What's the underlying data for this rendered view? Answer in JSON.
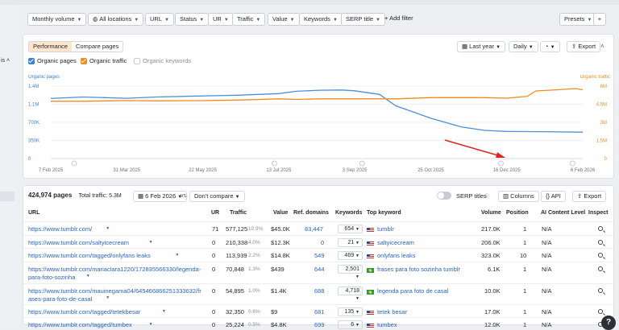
{
  "sidebar": {
    "partial_label": "is ˄"
  },
  "filters": {
    "monthly_volume": "Monthly volume",
    "all_locations": "All locations",
    "url": "URL",
    "status": "Status",
    "ur": "UR",
    "traffic": "Traffic",
    "value": "Value",
    "keywords": "Keywords",
    "serp_title": "SERP title",
    "add_filter": "Add filter",
    "presets": "Presets"
  },
  "overview": {
    "tabs": [
      "Performance",
      "Compare pages"
    ],
    "period": "Last year",
    "granularity": "Daily",
    "export": "Export",
    "checkboxes": [
      "Organic pages",
      "Organic traffic",
      "Organic keywords"
    ]
  },
  "chart_data": {
    "type": "line",
    "left_axis_label": "Organic pages",
    "right_axis_label": "Organic traffic",
    "left_ticks": [
      "0",
      "350K",
      "700K",
      "1.1M",
      "1.4M"
    ],
    "right_ticks": [
      "0",
      "1.5M",
      "3M",
      "4.5M",
      "6M"
    ],
    "x_ticks": [
      "7 Feb 2025",
      "31 Mar 2025",
      "22 May 2025",
      "13 Jul 2025",
      "3 Sep 2025",
      "25 Oct 2025",
      "16 Dec 2025",
      "6 Feb 2026"
    ],
    "ylim_left": [
      0,
      1400000
    ],
    "ylim_right": [
      0,
      6000000
    ],
    "series": [
      {
        "name": "Organic pages",
        "color": "#4a90d9",
        "x": [
          "2025-02-07",
          "2025-03-01",
          "2025-03-31",
          "2025-04-20",
          "2025-05-22",
          "2025-06-15",
          "2025-07-13",
          "2025-07-25",
          "2025-08-10",
          "2025-08-25",
          "2025-09-03",
          "2025-09-20",
          "2025-10-01",
          "2025-10-25",
          "2025-11-15",
          "2025-12-01",
          "2025-12-16",
          "2026-01-10",
          "2026-02-06"
        ],
        "values": [
          1160000,
          1190000,
          1165000,
          1190000,
          1210000,
          1225000,
          1255000,
          1300000,
          1320000,
          1325000,
          1310000,
          1240000,
          1020000,
          780000,
          610000,
          545000,
          525000,
          520000,
          510000
        ]
      },
      {
        "name": "Organic traffic",
        "color": "#f08c1e",
        "x": [
          "2025-02-07",
          "2025-03-01",
          "2025-03-31",
          "2025-04-20",
          "2025-05-22",
          "2025-06-15",
          "2025-07-13",
          "2025-07-25",
          "2025-08-10",
          "2025-09-03",
          "2025-10-01",
          "2025-10-25",
          "2025-11-15",
          "2025-12-01",
          "2025-12-16",
          "2025-12-30",
          "2026-01-05",
          "2026-01-20",
          "2026-02-01",
          "2026-02-06"
        ],
        "values": [
          4750000,
          4750000,
          4800000,
          4780000,
          4800000,
          4850000,
          4950000,
          4900000,
          4950000,
          4950000,
          4950000,
          5050000,
          5050000,
          5050000,
          5000000,
          5150000,
          5600000,
          5700000,
          5800000,
          5700000
        ]
      }
    ]
  },
  "table": {
    "total_pages": "424,974 pages",
    "total_traffic": "Total traffic: 5.3M",
    "date": "6 Feb 2026",
    "vs": "vs.",
    "compare": "Don't compare",
    "serp_titles": "SERP titles",
    "columns_btn": "Columns",
    "api_btn": "API",
    "export_btn": "Export",
    "headers": [
      "URL",
      "UR",
      "Traffic",
      "Value",
      "Ref. domains",
      "Keywords",
      "Top keyword",
      "Volume",
      "Position",
      "AI Content Level",
      "Inspect"
    ],
    "rows": [
      {
        "url1": "https://www.tumblr.com/",
        "url2": "",
        "ur": "71",
        "traffic": "577,125",
        "pct": "10.9%",
        "value": "$45.0K",
        "refdomains": "83,447",
        "keywords": "654",
        "flag": "us",
        "topkw": "tumblr",
        "volume": "217.0K",
        "position": "1",
        "ai": "N/A"
      },
      {
        "url1": "https://www.tumblr.com/saltyicecream",
        "url2": "",
        "ur": "0",
        "traffic": "210,338",
        "pct": "4.0%",
        "value": "$12.3K",
        "refdomains": "0",
        "keywords": "21",
        "flag": "us",
        "topkw": "saltyicecream",
        "volume": "206.0K",
        "position": "1",
        "ai": "N/A"
      },
      {
        "url1": "https://www.tumblr.com/tagged/onlyfans leaks",
        "url2": "",
        "ur": "0",
        "traffic": "113,939",
        "pct": "2.2%",
        "value": "$14.8K",
        "refdomains": "549",
        "keywords": "469",
        "flag": "us",
        "topkw": "onlyfans leaks",
        "volume": "323.0K",
        "position": "10",
        "ai": "N/A"
      },
      {
        "url1": "https://www.tumblr.com/mariaclara1220/172835566330/legenda-",
        "url2": "para-foto-sozinha",
        "ur": "0",
        "traffic": "70,848",
        "pct": "1.3%",
        "value": "$439",
        "refdomains": "644",
        "keywords": "2,501",
        "flag": "br",
        "topkw": "frases para foto sozinha tumblr",
        "volume": "6.1K",
        "position": "1",
        "ai": "N/A"
      },
      {
        "url1": "https://www.tumblr.com/mauinegama04/645466866251333632/fr",
        "url2": "ases-para-foto-de-casal",
        "ur": "0",
        "traffic": "54,895",
        "pct": "1.0%",
        "value": "$1.4K",
        "refdomains": "688",
        "keywords": "4,718",
        "flag": "br",
        "topkw": "legenda para foto de casal",
        "volume": "10.0K",
        "position": "1",
        "ai": "N/A"
      },
      {
        "url1": "https://www.tumblr.com/tagged/tetekbesar",
        "url2": "",
        "ur": "0",
        "traffic": "32,350",
        "pct": "0.6%",
        "value": "$9",
        "refdomains": "681",
        "keywords": "135",
        "flag": "us",
        "topkw": "tetek besar",
        "volume": "17.0K",
        "position": "1",
        "ai": "N/A"
      },
      {
        "url1": "https://www.tumblr.com/tagged/tumbex",
        "url2": "",
        "ur": "0",
        "traffic": "25,224",
        "pct": "0.5%",
        "value": "$4.8K",
        "refdomains": "699",
        "keywords": "6",
        "flag": "us",
        "topkw": "tumbex",
        "volume": "12.0K",
        "position": "1",
        "ai": "N/A"
      }
    ]
  },
  "help_label": "?"
}
